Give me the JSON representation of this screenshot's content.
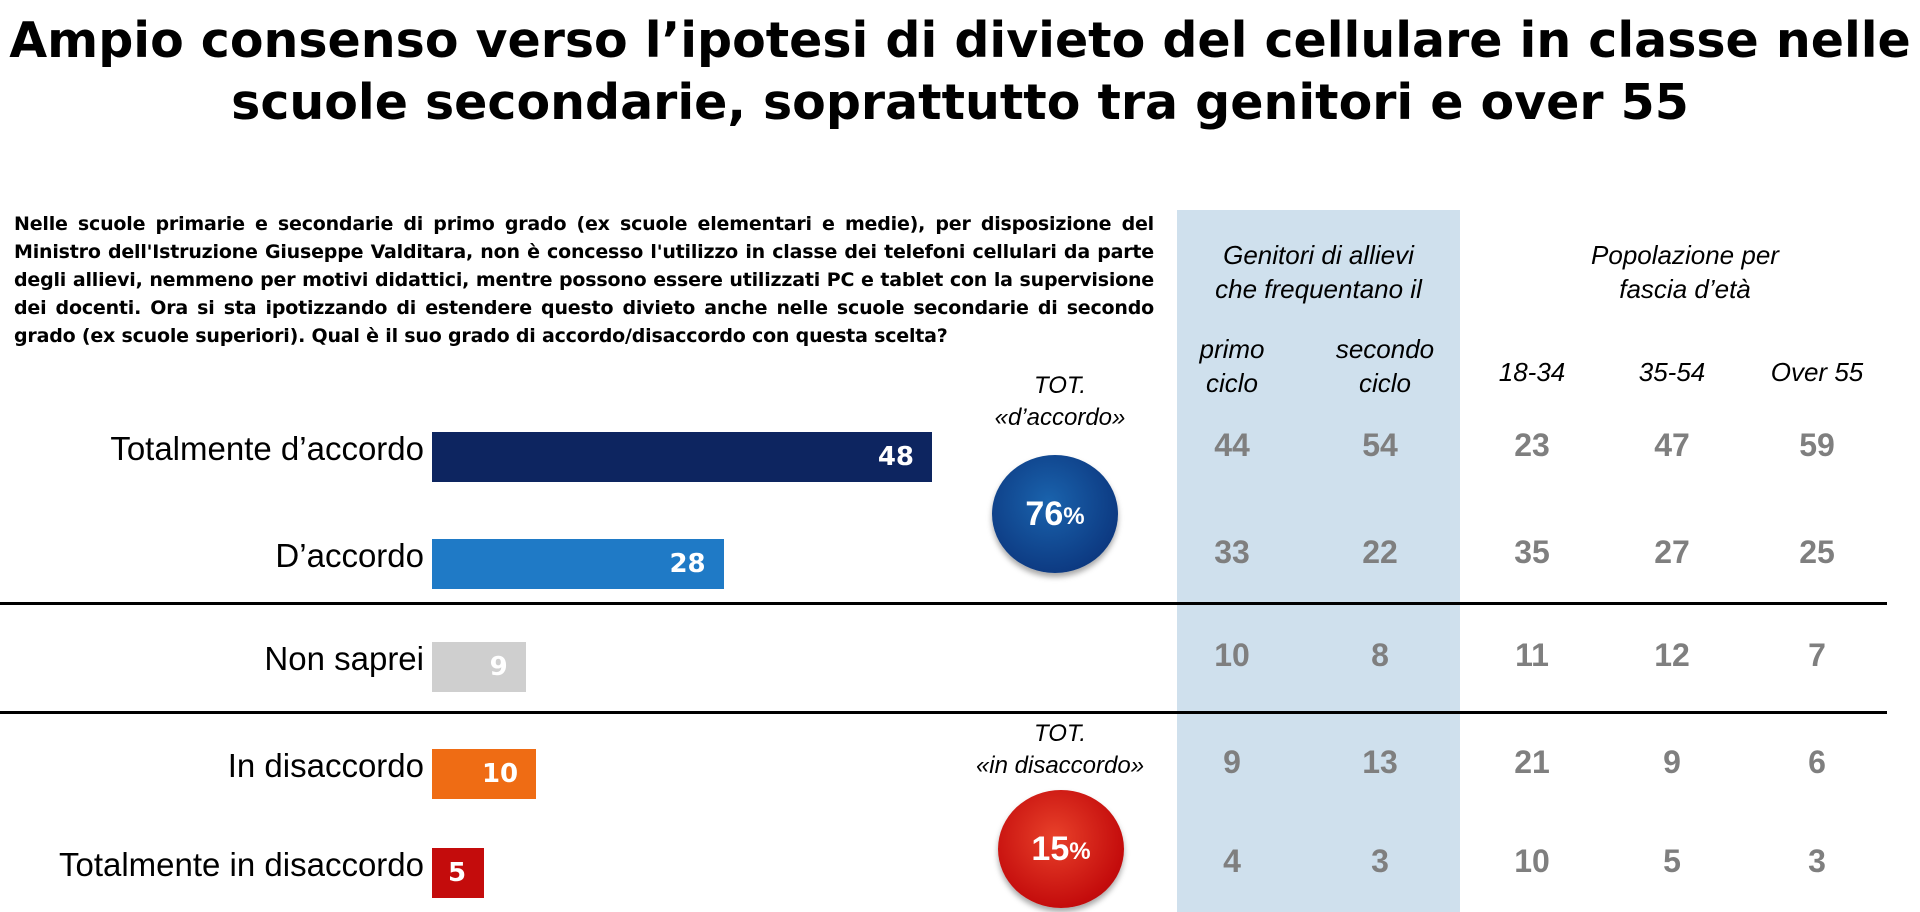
{
  "title_line1": "Ampio consenso verso l’ipotesi di divieto del cellulare in classe nelle",
  "title_line2": "scuole secondarie, soprattutto tra genitori e over 55",
  "question": "Nelle scuole primarie e secondarie di primo grado (ex scuole elementari e medie), per disposizione del Ministro dell'Istruzione Giuseppe Valditara, non è concesso l'utilizzo in classe dei telefoni cellulari da parte degli allievi, nemmeno per motivi didattici, mentre possono essere utilizzati PC e tablet con la supervisione dei docenti. Ora si sta ipotizzando di estendere questo divieto anche nelle scuole secondarie di secondo grado (ex scuole superiori). Qual è il suo grado di accordo/disaccordo con questa scelta?",
  "group_headers": {
    "parents_line1": "Genitori di allievi",
    "parents_line2": "che frequentano il",
    "population_line1": "Popolazione per",
    "population_line2": "fascia d’età"
  },
  "column_headers": {
    "primo_1": "primo",
    "primo_2": "ciclo",
    "secondo_1": "secondo",
    "secondo_2": "ciclo",
    "age1": "18-34",
    "age2": "35-54",
    "age3": "Over 55"
  },
  "totals": {
    "agree_label_1": "TOT.",
    "agree_label_2": "«d’accordo»",
    "agree_value": "76",
    "disagree_label_1": "TOT.",
    "disagree_label_2": "«in disaccordo»",
    "disagree_value": "15",
    "percent_sign": "%"
  },
  "colors": {
    "tot_accordo": "#0d2560",
    "accordo": "#1f7ac6",
    "non_saprei": "#cfcfcf",
    "disaccordo": "#ef6c14",
    "tot_disaccordo": "#c40c0c",
    "panel": "#cfe0ed",
    "cell_text": "#7f7f7f"
  },
  "chart_data": {
    "type": "bar",
    "orientation": "horizontal",
    "categories": [
      "Totalmente d’accordo",
      "D’accordo",
      "Non saprei",
      "In disaccordo",
      "Totalmente in disaccordo"
    ],
    "values": [
      48,
      28,
      9,
      10,
      5
    ],
    "value_labels": [
      "48",
      "28",
      "9",
      "10",
      "5"
    ],
    "table": {
      "primo_ciclo": [
        "44",
        "33",
        "10",
        "9",
        "4"
      ],
      "secondo_ciclo": [
        "54",
        "22",
        "8",
        "13",
        "3"
      ],
      "age_18_34": [
        "23",
        "35",
        "11",
        "21",
        "10"
      ],
      "age_35_54": [
        "47",
        "27",
        "12",
        "9",
        "5"
      ],
      "age_over_55": [
        "59",
        "25",
        "7",
        "6",
        "3"
      ]
    }
  }
}
